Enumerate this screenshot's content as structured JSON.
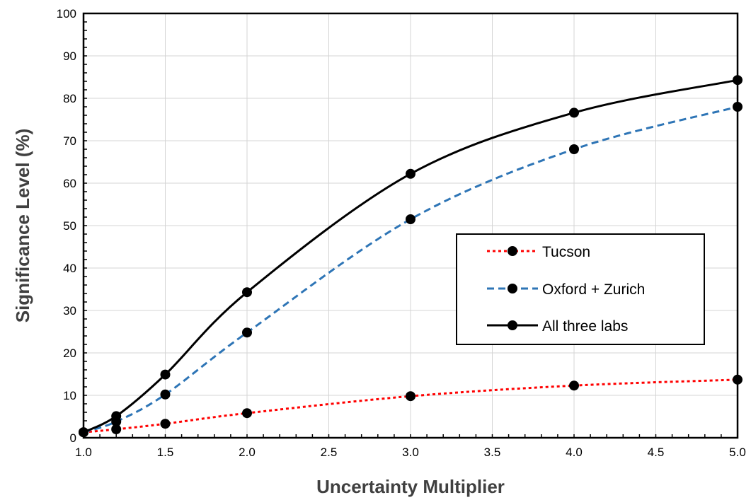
{
  "chart_data": {
    "type": "line",
    "xlabel": "Uncertainty Multiplier",
    "ylabel": "Significance Level (%)",
    "xlim": [
      1.0,
      5.0
    ],
    "ylim": [
      0,
      100
    ],
    "x_ticks": [
      "1.0",
      "1.5",
      "2.0",
      "2.5",
      "3.0",
      "3.5",
      "4.0",
      "4.5",
      "5.0"
    ],
    "y_ticks": [
      "0",
      "10",
      "20",
      "30",
      "40",
      "50",
      "60",
      "70",
      "80",
      "90",
      "100"
    ],
    "grid": true,
    "legend_position": "center-right",
    "series": [
      {
        "name": "Tucson",
        "color": "#ff0000",
        "line_style": "dotted",
        "x": [
          1.0,
          1.2,
          1.5,
          2.0,
          3.0,
          4.0,
          5.0
        ],
        "y": [
          1.3,
          2.0,
          3.3,
          5.8,
          9.8,
          12.3,
          13.7
        ]
      },
      {
        "name": "Oxford + Zurich",
        "color": "#2e75b6",
        "line_style": "dashed",
        "x": [
          1.0,
          1.2,
          1.5,
          2.0,
          3.0,
          4.0,
          5.0
        ],
        "y": [
          1.3,
          3.8,
          10.2,
          24.8,
          51.5,
          68.0,
          78.0
        ]
      },
      {
        "name": "All three labs",
        "color": "#000000",
        "line_style": "solid",
        "x": [
          1.0,
          1.2,
          1.5,
          2.0,
          3.0,
          4.0,
          5.0
        ],
        "y": [
          1.3,
          5.1,
          14.9,
          34.3,
          62.2,
          76.6,
          84.3
        ]
      }
    ]
  }
}
